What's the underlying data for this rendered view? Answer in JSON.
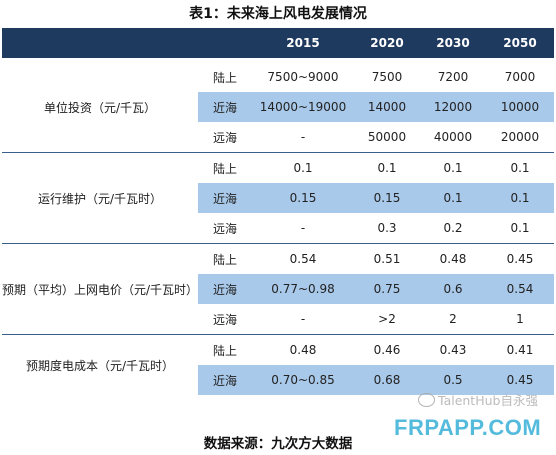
{
  "title": "表1：未来海上风电发展情况",
  "years": [
    "2015",
    "2020",
    "2030",
    "2050"
  ],
  "groups": [
    {
      "metric": "单位投资（元/千瓦）",
      "rows": [
        {
          "type": "陆上",
          "values": [
            "7500~9000",
            "7500",
            "7200",
            "7000"
          ]
        },
        {
          "type": "近海",
          "values": [
            "14000~19000",
            "14000",
            "12000",
            "10000"
          ]
        },
        {
          "type": "远海",
          "values": [
            "-",
            "50000",
            "40000",
            "20000"
          ]
        }
      ]
    },
    {
      "metric": "运行维护（元/千瓦时）",
      "rows": [
        {
          "type": "陆上",
          "values": [
            "0.1",
            "0.1",
            "0.1",
            "0.1"
          ]
        },
        {
          "type": "近海",
          "values": [
            "0.15",
            "0.15",
            "0.1",
            "0.1"
          ]
        },
        {
          "type": "远海",
          "values": [
            "-",
            "0.3",
            "0.2",
            "0.1"
          ]
        }
      ]
    },
    {
      "metric": "预期（平均）上网电价（元/千瓦时）",
      "rows": [
        {
          "type": "陆上",
          "values": [
            "0.54",
            "0.51",
            "0.48",
            "0.45"
          ]
        },
        {
          "type": "近海",
          "values": [
            "0.77~0.98",
            "0.75",
            "0.6",
            "0.54"
          ]
        },
        {
          "type": "远海",
          "values": [
            "-",
            ">2",
            "2",
            "1"
          ]
        }
      ]
    },
    {
      "metric": "预期度电成本（元/千瓦时）",
      "rows": [
        {
          "type": "陆上",
          "values": [
            "0.48",
            "0.46",
            "0.43",
            "0.41"
          ]
        },
        {
          "type": "近海",
          "values": [
            "0.70~0.85",
            "0.68",
            "0.5",
            "0.45"
          ]
        }
      ]
    }
  ],
  "source": "数据来源：九次方大数据",
  "watermark_text": "TalentHub自永强",
  "watermark_site": "FRPAPP.COM",
  "colors": {
    "header": "#1f3a5f",
    "shade": "#a9c9ea",
    "divider": "#3a5f8a"
  }
}
